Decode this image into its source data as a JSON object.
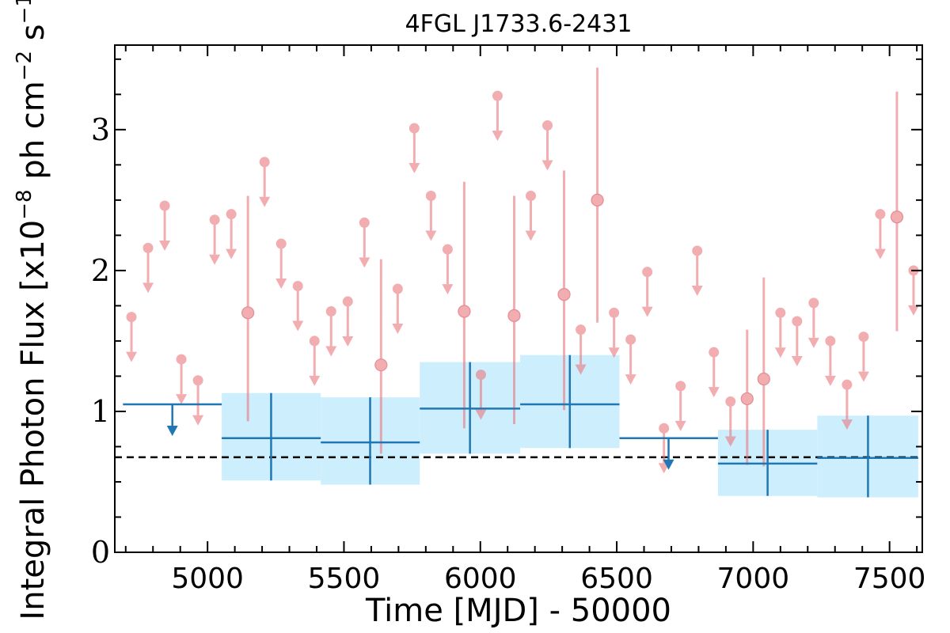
{
  "chart_data": {
    "type": "scatter",
    "title": "4FGL J1733.6-2431",
    "xlabel": "Time [MJD] - 50000",
    "ylabel": "Integral Photon Flux [x10",
    "ylabel_exp1": "−8",
    "ylabel_mid": " ph cm",
    "ylabel_exp2": "−2",
    "ylabel_mid2": " s",
    "ylabel_exp3": "−1",
    "ylabel_end": "]",
    "xlim": [
      4660,
      7620
    ],
    "ylim": [
      0,
      3.6
    ],
    "xticks": [
      5000,
      5500,
      6000,
      6500,
      7000,
      7500
    ],
    "yticks": [
      0,
      1,
      2,
      3
    ],
    "colors": {
      "monthly": "#e8777d",
      "yearly": "#1f77b4",
      "yearly_band": "#cdeefd",
      "baseline": "#000000"
    },
    "baseline": 0.675,
    "series": [
      {
        "bin": "monthly",
        "upper_limits": [
          [
            4721,
            1.67
          ],
          [
            4782,
            2.16
          ],
          [
            4843,
            2.46
          ],
          [
            4904,
            1.37
          ],
          [
            4965,
            1.22
          ],
          [
            5026,
            2.36
          ],
          [
            5087,
            2.4
          ],
          [
            5209,
            2.77
          ],
          [
            5270,
            2.19
          ],
          [
            5331,
            1.89
          ],
          [
            5392,
            1.5
          ],
          [
            5453,
            1.71
          ],
          [
            5514,
            1.78
          ],
          [
            5575,
            2.34
          ],
          [
            5697,
            1.87
          ],
          [
            5758,
            3.01
          ],
          [
            5819,
            2.53
          ],
          [
            5880,
            2.15
          ],
          [
            6002,
            1.26
          ],
          [
            6063,
            3.24
          ],
          [
            6185,
            2.53
          ],
          [
            6246,
            3.03
          ],
          [
            6368,
            1.58
          ],
          [
            6490,
            1.7
          ],
          [
            6551,
            1.51
          ],
          [
            6612,
            1.99
          ],
          [
            6673,
            0.88
          ],
          [
            6734,
            1.18
          ],
          [
            6795,
            2.14
          ],
          [
            6856,
            1.42
          ],
          [
            6917,
            1.07
          ],
          [
            7100,
            1.7
          ],
          [
            7161,
            1.64
          ],
          [
            7222,
            1.77
          ],
          [
            7283,
            1.5
          ],
          [
            7344,
            1.19
          ],
          [
            7405,
            1.53
          ],
          [
            7466,
            2.4
          ],
          [
            7588,
            2.0
          ]
        ],
        "detections": [
          [
            5148,
            1.7,
            0.93,
            2.53
          ],
          [
            5636,
            1.33,
            0.7,
            2.08
          ],
          [
            5941,
            1.71,
            0.88,
            2.63
          ],
          [
            6124,
            1.68,
            0.91,
            2.53
          ],
          [
            6307,
            1.83,
            1.01,
            2.71
          ],
          [
            6429,
            2.5,
            1.63,
            3.44
          ],
          [
            6978,
            1.09,
            0.62,
            1.58
          ],
          [
            7039,
            1.23,
            0.61,
            1.95
          ],
          [
            7527,
            2.38,
            1.57,
            3.27
          ]
        ]
      },
      {
        "bin": "yearly",
        "points": [
          {
            "x": 4871,
            "xlo": 4690,
            "xhi": 5052,
            "y": 1.05,
            "ul": true
          },
          {
            "x": 5233,
            "xlo": 5052,
            "xhi": 5415,
            "y": 0.81,
            "ylo": 0.51,
            "yhi": 1.13
          },
          {
            "x": 5596,
            "xlo": 5415,
            "xhi": 5778,
            "y": 0.78,
            "ylo": 0.48,
            "yhi": 1.1
          },
          {
            "x": 5962,
            "xlo": 5778,
            "xhi": 6146,
            "y": 1.02,
            "ylo": 0.7,
            "yhi": 1.35
          },
          {
            "x": 6328,
            "xlo": 6146,
            "xhi": 6510,
            "y": 1.05,
            "ylo": 0.74,
            "yhi": 1.4
          },
          {
            "x": 6690,
            "xlo": 6510,
            "xhi": 6871,
            "y": 0.81,
            "ul": true
          },
          {
            "x": 7053,
            "xlo": 6871,
            "xhi": 7235,
            "y": 0.63,
            "ylo": 0.4,
            "yhi": 0.87
          },
          {
            "x": 7421,
            "xlo": 7235,
            "xhi": 7605,
            "y": 0.67,
            "ylo": 0.39,
            "yhi": 0.97
          }
        ]
      }
    ]
  }
}
